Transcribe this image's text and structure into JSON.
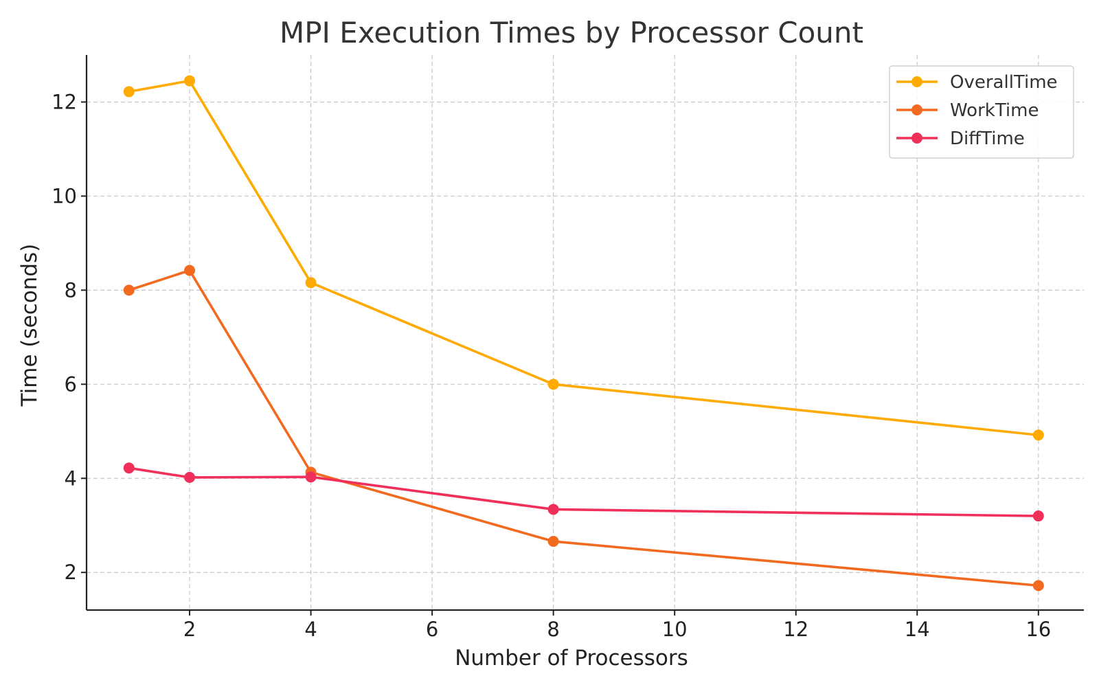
{
  "chart_data": {
    "type": "line",
    "title": "MPI Execution Times by Processor Count",
    "xlabel": "Number of Processors",
    "ylabel": "Time (seconds)",
    "x": [
      1,
      2,
      4,
      8,
      16
    ],
    "xlim": [
      0.3,
      16.75
    ],
    "ylim": [
      1.2,
      13.0
    ],
    "xticks": [
      2,
      4,
      6,
      8,
      10,
      12,
      14,
      16
    ],
    "yticks": [
      2,
      4,
      6,
      8,
      10,
      12
    ],
    "grid": true,
    "legend_position": "top-right",
    "series": [
      {
        "name": "OverallTime",
        "color": "#FFAA00",
        "values": [
          12.22,
          12.45,
          8.16,
          6.0,
          4.92
        ]
      },
      {
        "name": "WorkTime",
        "color": "#F26A20",
        "values": [
          8.0,
          8.42,
          4.13,
          2.66,
          1.72
        ]
      },
      {
        "name": "DiffTime",
        "color": "#F0305A",
        "values": [
          4.22,
          4.02,
          4.03,
          3.34,
          3.2
        ]
      }
    ]
  }
}
